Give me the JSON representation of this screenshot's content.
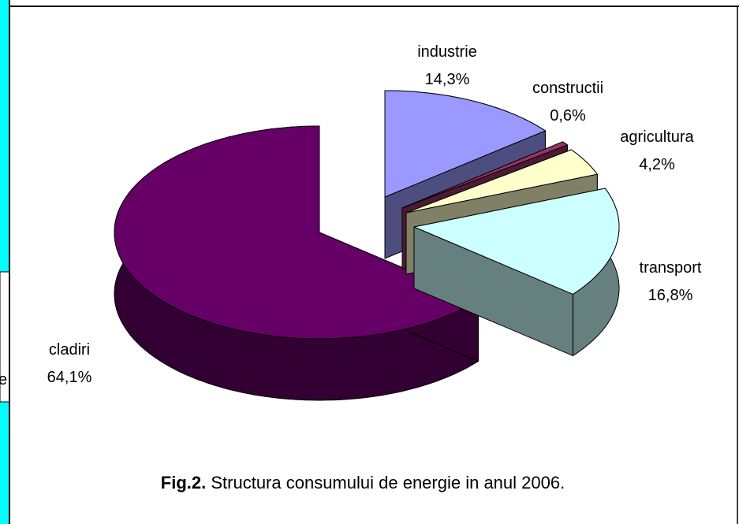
{
  "fragments": [
    "e"
  ],
  "chart_data": {
    "type": "pie3d",
    "categories": [
      "industrie",
      "constructii",
      "agricultura",
      "transport",
      "cladiri"
    ],
    "values": [
      14.3,
      0.6,
      4.2,
      16.8,
      64.1
    ],
    "value_labels": [
      "14,3%",
      "0,6%",
      "4,2%",
      "16,8%",
      "64,1%"
    ],
    "colors": [
      "#9999ff",
      "#993366",
      "#ffffcc",
      "#ccffff",
      "#660066"
    ],
    "caption_bold": "Fig.2.",
    "caption": "Structura consumului de energie in anul 2006."
  }
}
